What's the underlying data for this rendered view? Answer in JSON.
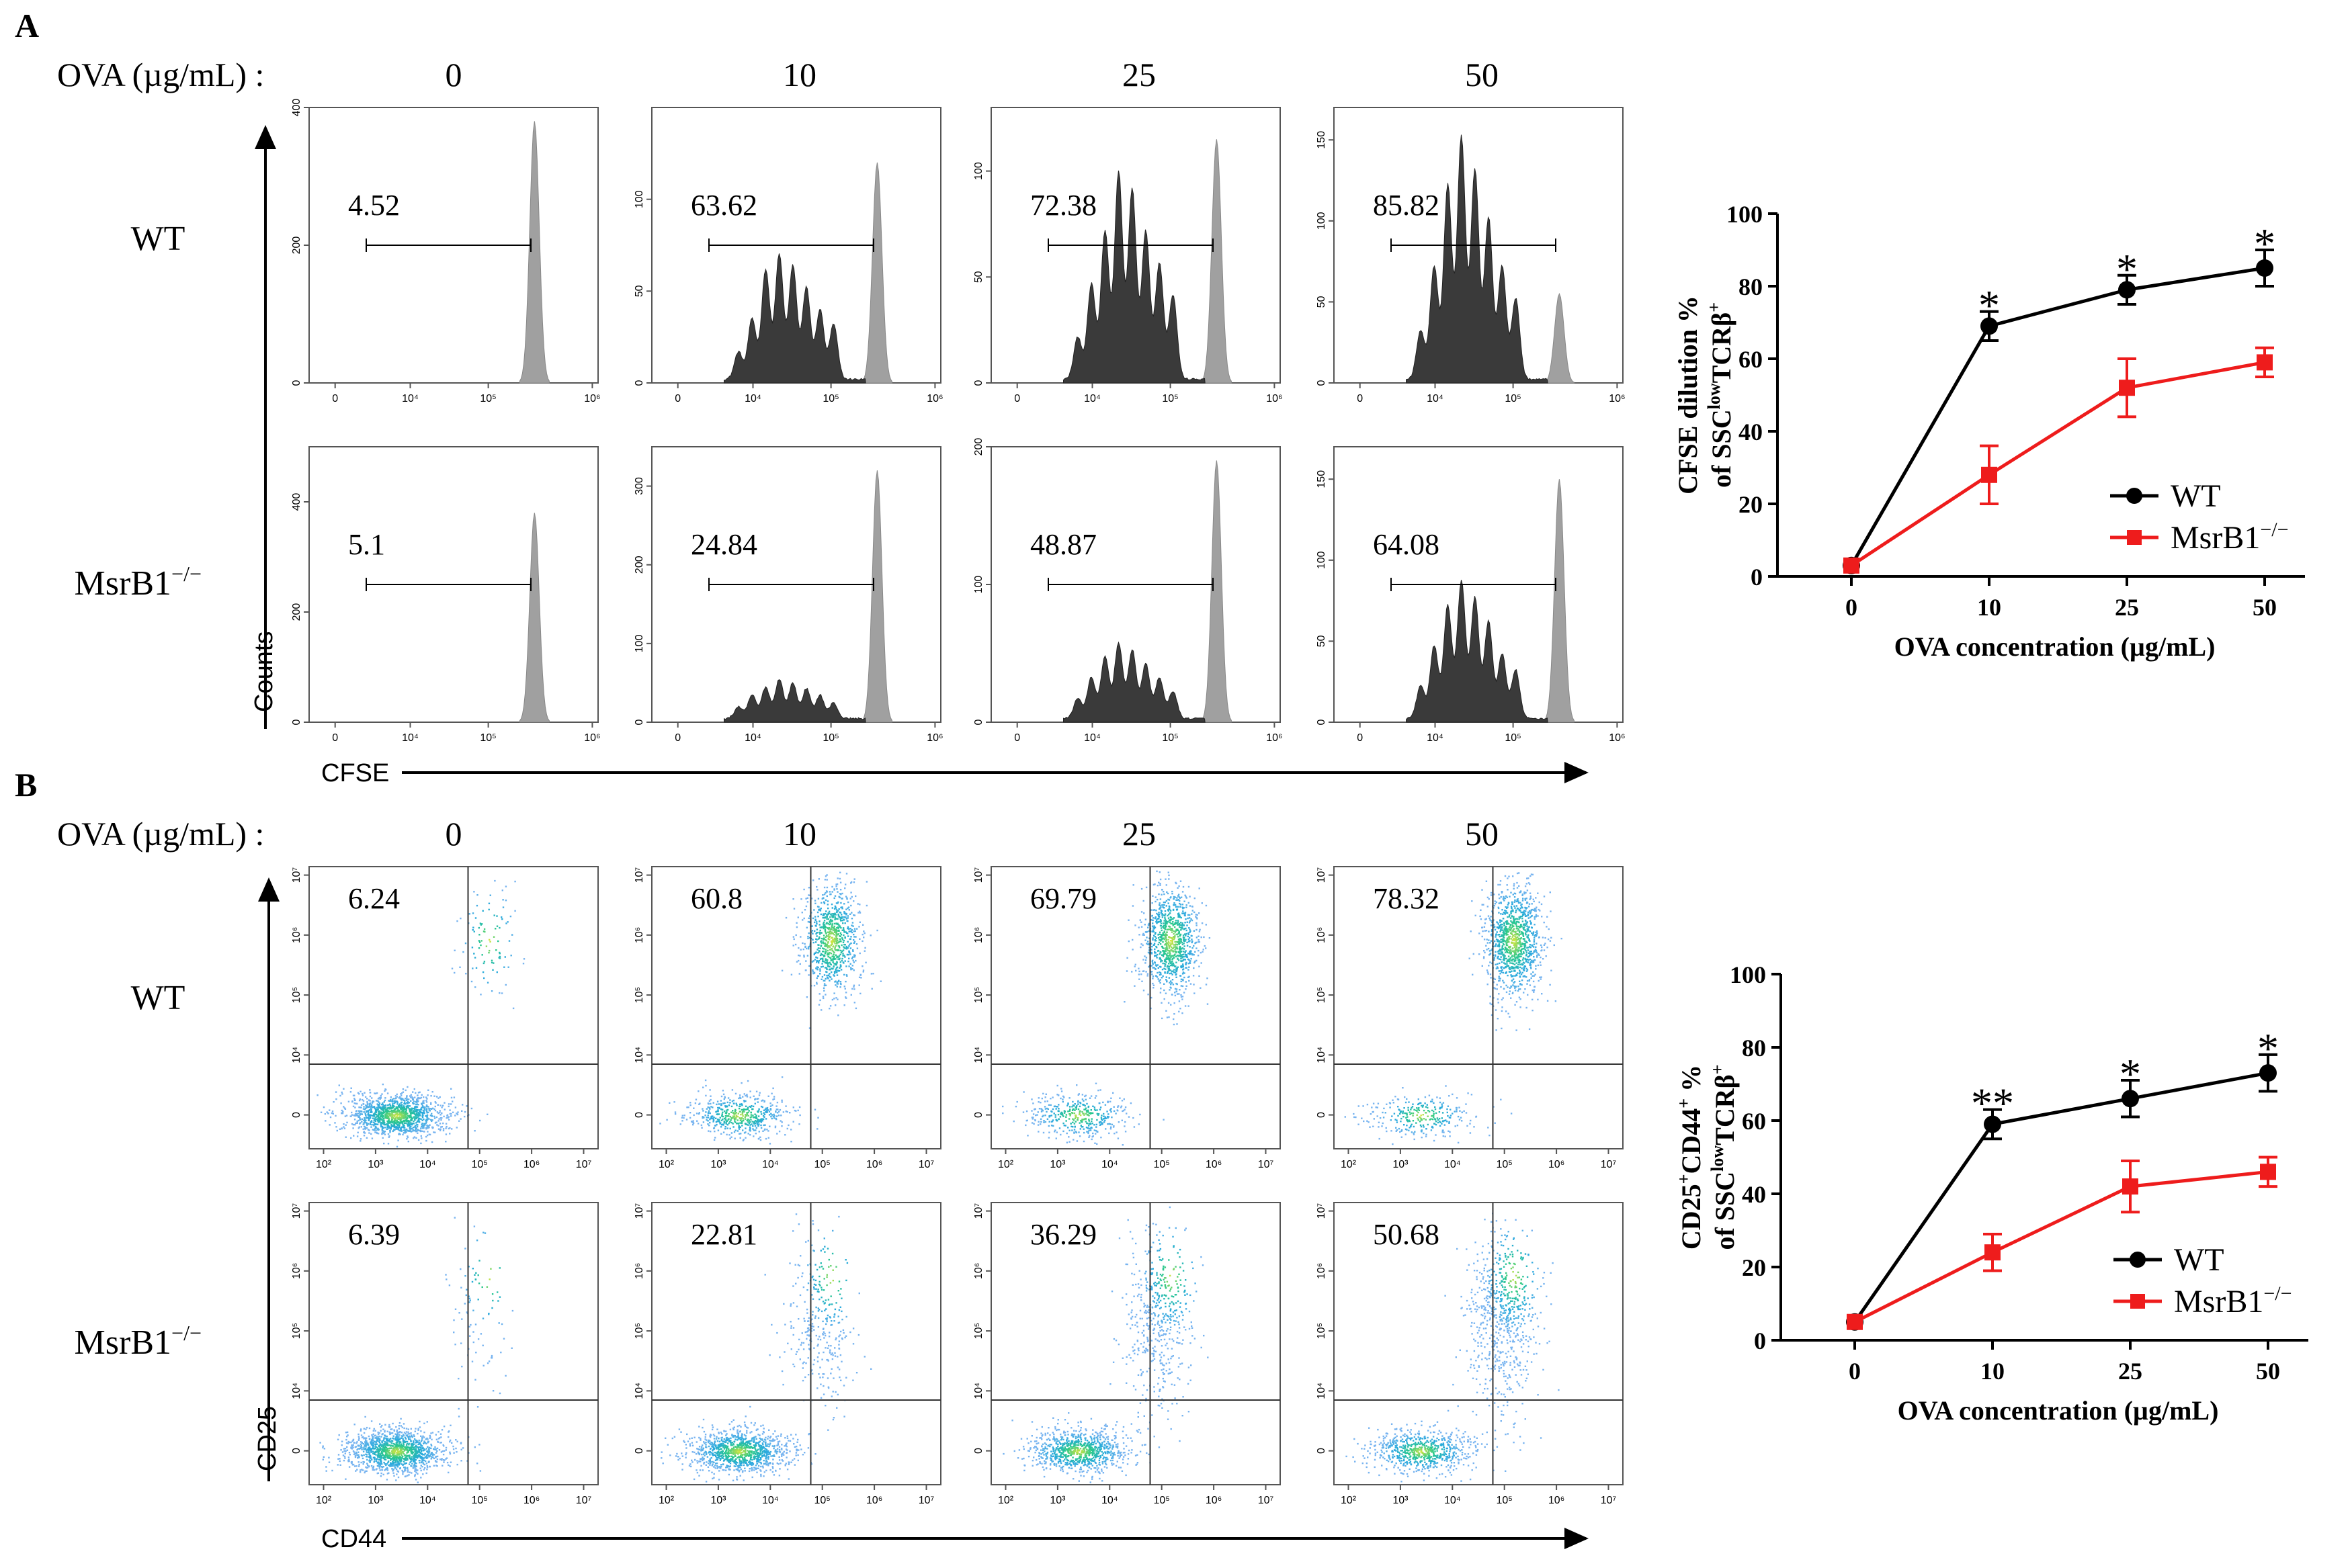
{
  "panels": {
    "A": {
      "letter": "A",
      "ova_label": "OVA (µg/mL) :",
      "concentrations": [
        "0",
        "10",
        "25",
        "50"
      ],
      "row_labels": [
        "WT",
        "MsrB1"
      ],
      "row_superscript": "−/−",
      "y_axis_label": "Counts",
      "x_axis_label": "CFSE",
      "x_ticks": [
        "0",
        "10⁴",
        "10⁵",
        "10⁶"
      ],
      "histograms": [
        [
          {
            "gate_value": "4.52",
            "ymax": 400,
            "y_ticks": [
              "0",
              "200",
              "400"
            ],
            "dividing_peaks": [],
            "undivided_peak": 380
          },
          {
            "gate_value": "63.62",
            "ymax": 150,
            "y_ticks": [
              "0",
              "50",
              "100"
            ],
            "dividing_peaks": [
              15,
              33,
              60,
              68,
              62,
              50,
              38,
              30
            ],
            "undivided_peak": 120
          },
          {
            "gate_value": "72.38",
            "ymax": 130,
            "y_ticks": [
              "0",
              "50",
              "100"
            ],
            "dividing_peaks": [
              20,
              45,
              70,
              98,
              90,
              70,
              55,
              40
            ],
            "undivided_peak": 115
          },
          {
            "gate_value": "85.82",
            "ymax": 170,
            "y_ticks": [
              "0",
              "50",
              "100",
              "150"
            ],
            "dividing_peaks": [
              30,
              70,
              120,
              150,
              130,
              100,
              70,
              50
            ],
            "undivided_peak": 55
          }
        ],
        [
          {
            "gate_value": "5.1",
            "ymax": 500,
            "y_ticks": [
              "0",
              "200",
              "400"
            ],
            "dividing_peaks": [],
            "undivided_peak": 380
          },
          {
            "gate_value": "24.84",
            "ymax": 350,
            "y_ticks": [
              "0",
              "100",
              "200",
              "300"
            ],
            "dividing_peaks": [
              15,
              30,
              40,
              50,
              45,
              38,
              30,
              20
            ],
            "undivided_peak": 320
          },
          {
            "gate_value": "48.87",
            "ymax": 200,
            "y_ticks": [
              "0",
              "100",
              "200"
            ],
            "dividing_peaks": [
              15,
              30,
              45,
              55,
              50,
              40,
              30,
              20
            ],
            "undivided_peak": 190
          },
          {
            "gate_value": "64.08",
            "ymax": 170,
            "y_ticks": [
              "0",
              "50",
              "100",
              "150"
            ],
            "dividing_peaks": [
              20,
              45,
              70,
              85,
              75,
              60,
              40,
              30
            ],
            "undivided_peak": 150
          }
        ]
      ]
    },
    "B": {
      "letter": "B",
      "ova_label": "OVA (µg/mL) :",
      "concentrations": [
        "0",
        "10",
        "25",
        "50"
      ],
      "row_labels": [
        "WT",
        "MsrB1"
      ],
      "row_superscript": "−/−",
      "y_axis_label": "CD25",
      "x_axis_label": "CD44",
      "x_ticks": [
        "10²",
        "10³",
        "10⁴",
        "10⁵",
        "10⁶",
        "10⁷"
      ],
      "y_ticks": [
        "0",
        "10⁴",
        "10⁵",
        "10⁶",
        "10⁷"
      ],
      "quadrant_values": [
        [
          "6.24",
          "60.8",
          "69.79",
          "78.32"
        ],
        [
          "6.39",
          "22.81",
          "36.29",
          "50.68"
        ]
      ]
    }
  },
  "chart_data": [
    {
      "type": "line",
      "title": "",
      "xlabel": "OVA concentration (µg/mL)",
      "ylabel_line1": "CFSE dilution %",
      "ylabel_line2": "of SSC",
      "ylabel_sup1": "low",
      "ylabel_mid": "TCRβ",
      "ylabel_sup2": "+",
      "categories": [
        "0",
        "10",
        "25",
        "50"
      ],
      "ylim": [
        0,
        100
      ],
      "y_ticks": [
        "0",
        "20",
        "40",
        "60",
        "80",
        "100"
      ],
      "series": [
        {
          "name": "WT",
          "color": "#000000",
          "marker": "circle",
          "values": [
            3,
            69,
            79,
            85
          ],
          "errors": [
            1,
            4,
            4,
            5
          ]
        },
        {
          "name": "MsrB1",
          "name_sup": "−/−",
          "color": "#ee1c1c",
          "marker": "square",
          "values": [
            3,
            28,
            52,
            59
          ],
          "errors": [
            1,
            8,
            8,
            4
          ]
        }
      ],
      "significance": [
        "",
        "*",
        "*",
        "*"
      ],
      "legend": "bottom-right"
    },
    {
      "type": "line",
      "title": "",
      "xlabel": "OVA concentration (µg/mL)",
      "ylabel_line1": "CD25",
      "ylabel_line1_sup": "+",
      "ylabel_line1b": "CD44",
      "ylabel_line1b_sup": "+",
      "ylabel_line1_suffix": " %",
      "ylabel_line2": "of SSC",
      "ylabel_sup1": "low",
      "ylabel_mid": "TCRβ",
      "ylabel_sup2": "+",
      "categories": [
        "0",
        "10",
        "25",
        "50"
      ],
      "ylim": [
        0,
        100
      ],
      "y_ticks": [
        "0",
        "20",
        "40",
        "60",
        "80",
        "100"
      ],
      "series": [
        {
          "name": "WT",
          "color": "#000000",
          "marker": "circle",
          "values": [
            5,
            59,
            66,
            73
          ],
          "errors": [
            1,
            4,
            5,
            5
          ]
        },
        {
          "name": "MsrB1",
          "name_sup": "−/−",
          "color": "#ee1c1c",
          "marker": "square",
          "values": [
            5,
            24,
            42,
            46
          ],
          "errors": [
            1,
            5,
            7,
            4
          ]
        }
      ],
      "significance": [
        "",
        "**",
        "*",
        "*"
      ],
      "legend": "bottom-right"
    }
  ]
}
